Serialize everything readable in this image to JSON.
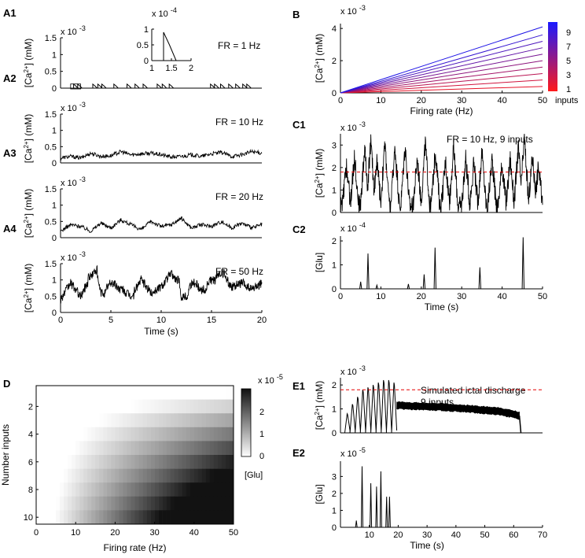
{
  "chart_data": [
    {
      "id": "A1",
      "panel_label": "A1",
      "type": "line",
      "xlim": [
        0,
        20
      ],
      "ylim": [
        0,
        0.0015
      ],
      "yticks": [
        "0",
        "0.5",
        "1",
        "1.5"
      ],
      "exponent": "x 10",
      "exponent_power": "-3",
      "ylabel": "[Ca",
      "ylabel_sup": "2+",
      "ylabel_tail": "] (mM)",
      "annotation": "FR = 1 Hz",
      "events": [
        1.3,
        1.7,
        3.2,
        3.7,
        4.1,
        5.3,
        6.6,
        7.4,
        8.2,
        9.6,
        10.1,
        10.8,
        14.9,
        15.3,
        15.9,
        16.7,
        17.4,
        18.1,
        18.5
      ],
      "peak": 0.00012,
      "inset": {
        "xlim": [
          1,
          2
        ],
        "ylim": [
          0,
          0.0001
        ],
        "xticks": [
          "1",
          "1.5",
          "2"
        ],
        "yticks": [
          "0",
          "0.5",
          "1"
        ],
        "exponent": "x 10",
        "exponent_power": "-4",
        "trace_x": [
          1.3,
          1.3,
          1.45,
          1.62
        ],
        "trace_y": [
          0,
          9e-05,
          5e-05,
          0
        ]
      }
    },
    {
      "id": "A2",
      "panel_label": "A2",
      "type": "line",
      "xlim": [
        0,
        20
      ],
      "ylim": [
        0,
        0.0015
      ],
      "yticks": [
        "0",
        "0.5",
        "1",
        "1.5"
      ],
      "exponent": "x 10",
      "exponent_power": "-3",
      "ylabel": "[Ca",
      "ylabel_sup": "2+",
      "ylabel_tail": "] (mM)",
      "annotation": "FR = 10 Hz",
      "trace_x": [
        0,
        1,
        2,
        3,
        4,
        5,
        6,
        7,
        8,
        9,
        10,
        11,
        12,
        13,
        14,
        15,
        16,
        17,
        18,
        19,
        20
      ],
      "trace_y": [
        0.00015,
        0.0002,
        0.00015,
        0.0003,
        0.0002,
        0.00022,
        0.00035,
        0.00025,
        0.00028,
        0.0003,
        0.00025,
        0.00018,
        0.0002,
        0.00025,
        0.0002,
        0.00028,
        0.00032,
        0.0002,
        0.00025,
        0.00035,
        0.0003
      ]
    },
    {
      "id": "A3",
      "panel_label": "A3",
      "type": "line",
      "xlim": [
        0,
        20
      ],
      "ylim": [
        0,
        0.0015
      ],
      "yticks": [
        "0",
        "0.5",
        "1",
        "1.5"
      ],
      "exponent": "x 10",
      "exponent_power": "-3",
      "ylabel": "[Ca",
      "ylabel_sup": "2+",
      "ylabel_tail": "] (mM)",
      "annotation": "FR = 20 Hz",
      "trace_x": [
        0,
        1,
        2,
        3,
        4,
        5,
        6,
        7,
        8,
        9,
        10,
        11,
        12,
        13,
        14,
        15,
        16,
        17,
        18,
        19,
        20
      ],
      "trace_y": [
        0.0002,
        0.0004,
        0.00035,
        0.0002,
        0.00045,
        0.0003,
        0.00055,
        0.0004,
        0.00025,
        0.0005,
        0.00035,
        0.0004,
        0.0006,
        0.0003,
        0.0004,
        0.00035,
        0.0005,
        0.0003,
        0.00045,
        0.0003,
        0.0004
      ]
    },
    {
      "id": "A4",
      "panel_label": "A4",
      "type": "line",
      "xlim": [
        0,
        20
      ],
      "ylim": [
        0,
        0.0015
      ],
      "xticks": [
        "0",
        "5",
        "10",
        "15",
        "20"
      ],
      "xlabel": "Time (s)",
      "yticks": [
        "0",
        "0.5",
        "1",
        "1.5"
      ],
      "exponent": "x 10",
      "exponent_power": "-3",
      "ylabel": "[Ca",
      "ylabel_sup": "2+",
      "ylabel_tail": "] (mM)",
      "annotation": "FR = 50 Hz",
      "trace_x": [
        0,
        1,
        2,
        3,
        3.5,
        4,
        5,
        6,
        7,
        8,
        9,
        10,
        11,
        11.5,
        12,
        13,
        14,
        15,
        16,
        17,
        18,
        19,
        20
      ],
      "trace_y": [
        0.0004,
        0.0009,
        0.0005,
        0.0011,
        0.0013,
        0.0006,
        0.0009,
        0.0007,
        0.0005,
        0.001,
        0.0006,
        0.0008,
        0.0012,
        0.001,
        0.0005,
        0.0009,
        0.0007,
        0.001,
        0.0012,
        0.0008,
        0.0009,
        0.0007,
        0.0009
      ]
    },
    {
      "id": "B",
      "panel_label": "B",
      "type": "line",
      "xlim": [
        0,
        50
      ],
      "ylim": [
        0,
        0.0043
      ],
      "xticks": [
        "0",
        "10",
        "20",
        "30",
        "40",
        "50"
      ],
      "xlabel": "Firing rate (Hz)",
      "yticks": [
        "0",
        "2",
        "4"
      ],
      "exponent": "x 10",
      "exponent_power": "-3",
      "ylabel": "[Ca",
      "ylabel_sup": "2+",
      "ylabel_tail": "] (mM)",
      "series_inputs": [
        1,
        2,
        3,
        4,
        5,
        6,
        7,
        8,
        9,
        10
      ],
      "series_end_values": [
        0.0004,
        0.0008,
        0.0012,
        0.0016,
        0.002,
        0.0024,
        0.0028,
        0.0032,
        0.0036,
        0.0041
      ],
      "colorbar": {
        "ticks": [
          "9",
          "7",
          "5",
          "3",
          "1"
        ],
        "label": "inputs",
        "low_color": "#ff1a1a",
        "high_color": "#1a1aff"
      }
    },
    {
      "id": "C1",
      "panel_label": "C1",
      "type": "line",
      "xlim": [
        0,
        50
      ],
      "ylim": [
        0,
        0.0035
      ],
      "yticks": [
        "0",
        "1",
        "2",
        "3"
      ],
      "exponent": "x 10",
      "exponent_power": "-3",
      "ylabel": "[Ca",
      "ylabel_sup": "2+",
      "ylabel_tail": "] (mM)",
      "annotation": "FR = 10 Hz, 9 inputs",
      "threshold": 0.0018,
      "threshold_color": "#e60000",
      "peak_times": [
        1.5,
        3.5,
        6,
        7.5,
        9,
        11,
        13.5,
        16,
        19,
        21,
        23.5,
        26,
        28,
        31,
        33,
        35,
        37.5,
        40,
        42,
        44,
        45.5,
        47.5,
        49
      ],
      "peak_values": [
        0.0021,
        0.0025,
        0.0029,
        0.0032,
        0.0023,
        0.0031,
        0.0029,
        0.003,
        0.0024,
        0.0031,
        0.0028,
        0.0023,
        0.0029,
        0.0024,
        0.0022,
        0.0027,
        0.0024,
        0.0021,
        0.0024,
        0.0029,
        0.0034,
        0.0025,
        0.0021
      ]
    },
    {
      "id": "C2",
      "panel_label": "C2",
      "type": "line",
      "xlim": [
        0,
        50
      ],
      "ylim": [
        0,
        0.00022
      ],
      "xticks": [
        "0",
        "10",
        "20",
        "30",
        "40",
        "50"
      ],
      "xlabel": "Time (s)",
      "yticks": [
        "0",
        "1",
        "2"
      ],
      "exponent": "x 10",
      "exponent_power": "-4",
      "ylabel": "[Glu]",
      "spike_times": [
        5,
        6.8,
        9,
        16.8,
        20.7,
        23.4,
        34.5,
        45.2
      ],
      "spike_values": [
        3e-05,
        0.000147,
        1.5e-05,
        2e-05,
        6e-05,
        0.000172,
        9e-05,
        0.000215
      ]
    },
    {
      "id": "D",
      "panel_label": "D",
      "type": "heatmap",
      "xticks": [
        "0",
        "10",
        "20",
        "30",
        "40",
        "50"
      ],
      "xlabel": "Firing rate (Hz)",
      "yticks": [
        "2",
        "4",
        "6",
        "8",
        "10"
      ],
      "ylabel": "Number inputs",
      "xlim": [
        0,
        50
      ],
      "rows": 10,
      "zmax": 3.2e-05,
      "colorbar": {
        "ticks": [
          "2",
          "1",
          "0"
        ],
        "exponent": "x 10",
        "exponent_power": "-5",
        "label": "[Glu]"
      }
    },
    {
      "id": "E1",
      "panel_label": "E1",
      "type": "line",
      "xlim": [
        0,
        70
      ],
      "ylim": [
        0,
        0.0023
      ],
      "yticks": [
        "0",
        "1",
        "2"
      ],
      "exponent": "x 10",
      "exponent_power": "-3",
      "ylabel": "[Ca",
      "ylabel_sup": "2+",
      "ylabel_tail": "] (mM)",
      "annotation": "Simulated ictal discharge",
      "annotation2": "9 inputs",
      "threshold": 0.0018,
      "threshold_color": "#e60000",
      "oscillation_peaks": [
        0.0008,
        0.0012,
        0.0015,
        0.0018,
        0.0019,
        0.002,
        0.0021,
        0.0022,
        0.0022,
        0.0021
      ],
      "oscillation_start": 1.5,
      "oscillation_end": 19.5,
      "plateau_x": [
        19.5,
        25,
        35,
        45,
        55,
        62
      ],
      "plateau_y": [
        0.00115,
        0.00112,
        0.00108,
        0.001,
        0.0009,
        0.00072
      ],
      "end_time": 62.5
    },
    {
      "id": "E2",
      "panel_label": "E2",
      "type": "line",
      "xlim": [
        0,
        70
      ],
      "ylim": [
        0,
        3.9e-05
      ],
      "xticks": [
        "10",
        "20",
        "30",
        "40",
        "50",
        "60",
        "70"
      ],
      "xlabel": "Time (s)",
      "yticks": [
        "0",
        "1",
        "2",
        "3"
      ],
      "exponent": "x 10",
      "exponent_power": "-5",
      "ylabel": "[Glu]",
      "spike_times": [
        5.5,
        7.5,
        10.5,
        12.5,
        14,
        16,
        17
      ],
      "spike_values": [
        4e-06,
        3.6e-05,
        2.6e-05,
        2.4e-05,
        3.3e-05,
        1.8e-05,
        1.8e-05
      ]
    }
  ]
}
